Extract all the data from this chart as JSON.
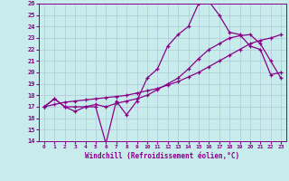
{
  "xlabel": "Windchill (Refroidissement éolien,°C)",
  "bg_color": "#c8ecec",
  "grid_color": "#b0c8d8",
  "line_color": "#880088",
  "xlim": [
    -0.5,
    23.5
  ],
  "ylim": [
    14,
    26
  ],
  "xticks": [
    0,
    1,
    2,
    3,
    4,
    5,
    6,
    7,
    8,
    9,
    10,
    11,
    12,
    13,
    14,
    15,
    16,
    17,
    18,
    19,
    20,
    21,
    22,
    23
  ],
  "yticks": [
    14,
    15,
    16,
    17,
    18,
    19,
    20,
    21,
    22,
    23,
    24,
    25,
    26
  ],
  "curve1_x": [
    0,
    1,
    2,
    3,
    4,
    5,
    6,
    7,
    8,
    9,
    10,
    11,
    12,
    13,
    14,
    15,
    16,
    17,
    18,
    19,
    20,
    21,
    22,
    23
  ],
  "curve1_y": [
    17.0,
    17.7,
    17.0,
    16.6,
    17.0,
    17.0,
    13.8,
    17.5,
    16.3,
    17.5,
    19.5,
    20.3,
    22.3,
    23.3,
    24.0,
    26.0,
    26.2,
    25.0,
    23.5,
    23.3,
    22.3,
    22.0,
    19.8,
    20.0
  ],
  "curve2_x": [
    0,
    1,
    2,
    3,
    4,
    5,
    6,
    7,
    8,
    9,
    10,
    11,
    12,
    13,
    14,
    15,
    16,
    17,
    18,
    19,
    20,
    21,
    22,
    23
  ],
  "curve2_y": [
    17.0,
    17.7,
    17.0,
    17.0,
    17.0,
    17.2,
    17.0,
    17.3,
    17.5,
    17.7,
    18.0,
    18.5,
    19.0,
    19.5,
    20.3,
    21.2,
    22.0,
    22.5,
    23.0,
    23.2,
    23.3,
    22.5,
    21.0,
    19.5
  ],
  "curve3_x": [
    0,
    1,
    2,
    3,
    4,
    5,
    6,
    7,
    8,
    9,
    10,
    11,
    12,
    13,
    14,
    15,
    16,
    17,
    18,
    19,
    20,
    21,
    22,
    23
  ],
  "curve3_y": [
    17.0,
    17.2,
    17.4,
    17.5,
    17.6,
    17.7,
    17.8,
    17.9,
    18.0,
    18.2,
    18.4,
    18.6,
    18.9,
    19.2,
    19.6,
    20.0,
    20.5,
    21.0,
    21.5,
    22.0,
    22.5,
    22.8,
    23.0,
    23.3
  ]
}
